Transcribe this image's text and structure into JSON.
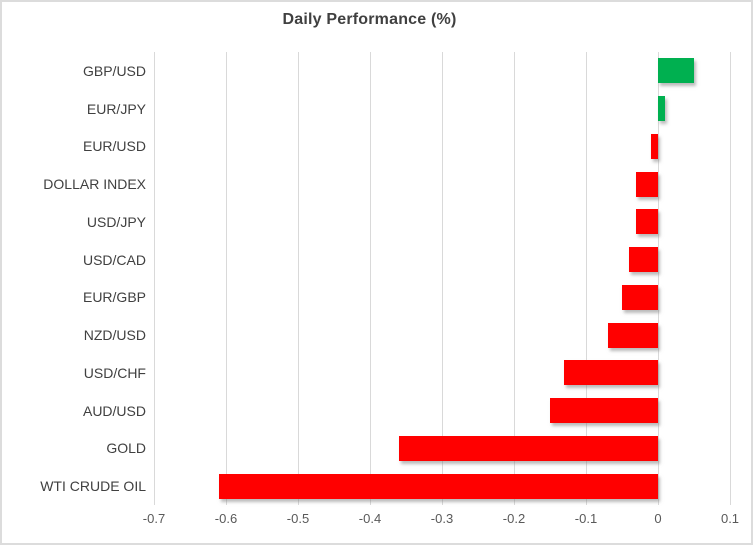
{
  "window": {
    "background": "#FFFFFF",
    "border_color": "#DCDCDC"
  },
  "chart_data": {
    "type": "bar",
    "orientation": "horizontal",
    "title": "Daily Performance (%)",
    "categories": [
      "GBP/USD",
      "EUR/JPY",
      "EUR/USD",
      "DOLLAR INDEX",
      "USD/JPY",
      "USD/CAD",
      "EUR/GBP",
      "NZD/USD",
      "USD/CHF",
      "AUD/USD",
      "GOLD",
      "WTI CRUDE OIL"
    ],
    "values": [
      0.05,
      0.01,
      -0.01,
      -0.03,
      -0.03,
      -0.04,
      -0.05,
      -0.07,
      -0.13,
      -0.15,
      -0.36,
      -0.61
    ],
    "xlabel": "",
    "ylabel": "",
    "xlim": [
      -0.7,
      0.1
    ],
    "x_ticks": [
      -0.7,
      -0.6,
      -0.5,
      -0.4,
      -0.3,
      -0.2,
      -0.1,
      0,
      0.1
    ],
    "x_tick_labels": [
      "-0.7",
      "-0.6",
      "-0.5",
      "-0.4",
      "-0.3",
      "-0.2",
      "-0.1",
      "0",
      "0.1"
    ],
    "grid": true,
    "legend": false,
    "colors": {
      "positive": "#00B050",
      "negative": "#FF0000",
      "gridline": "#D9D9D9",
      "tick_label": "#595959",
      "category_label": "#404040",
      "title": "#404040"
    }
  }
}
